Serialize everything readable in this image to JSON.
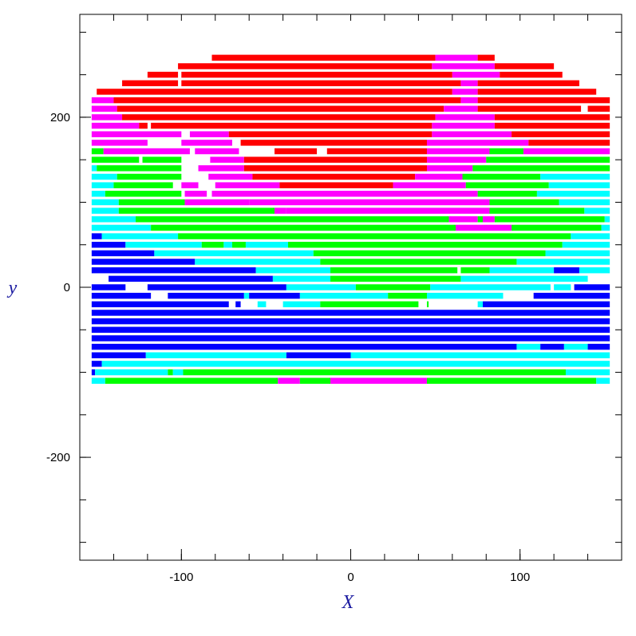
{
  "chart_data": {
    "type": "segments",
    "x_label": "X",
    "y_label": "y",
    "xlim": [
      -160,
      160
    ],
    "ylim": [
      -321,
      321
    ],
    "xticks": [
      -100,
      0,
      100
    ],
    "xminor": [
      -160,
      -140,
      -120,
      -100,
      -80,
      -60,
      -40,
      -20,
      0,
      20,
      40,
      60,
      80,
      100,
      120,
      140,
      160
    ],
    "yticks": [
      -200,
      0,
      200
    ],
    "yminor": [
      -300,
      -250,
      -200,
      -150,
      -100,
      -50,
      0,
      50,
      100,
      150,
      200,
      250,
      300
    ],
    "colors": [
      "#ff0000",
      "#ff00ff",
      "#00ff00",
      "#00ffff",
      "#0000ff"
    ],
    "rows": [
      {
        "y": 270,
        "segments": [
          [
            -82,
            50,
            0
          ],
          [
            50,
            75,
            1
          ],
          [
            75,
            85,
            0
          ]
        ]
      },
      {
        "y": 260,
        "segments": [
          [
            -102,
            48,
            0
          ],
          [
            48,
            85,
            1
          ],
          [
            85,
            120,
            0
          ]
        ]
      },
      {
        "y": 250,
        "segments": [
          [
            -120,
            -102,
            0
          ],
          [
            -100,
            60,
            0
          ],
          [
            60,
            88,
            1
          ],
          [
            88,
            125,
            0
          ]
        ]
      },
      {
        "y": 240,
        "segments": [
          [
            -135,
            -102,
            0
          ],
          [
            -100,
            65,
            0
          ],
          [
            65,
            75,
            1
          ],
          [
            75,
            135,
            0
          ]
        ]
      },
      {
        "y": 230,
        "segments": [
          [
            -150,
            60,
            0
          ],
          [
            60,
            75,
            1
          ],
          [
            75,
            145,
            0
          ]
        ]
      },
      {
        "y": 220,
        "segments": [
          [
            -153,
            -140,
            1
          ],
          [
            -140,
            65,
            0
          ],
          [
            65,
            75,
            1
          ],
          [
            75,
            153,
            0
          ]
        ]
      },
      {
        "y": 210,
        "segments": [
          [
            -153,
            -138,
            1
          ],
          [
            -138,
            55,
            0
          ],
          [
            55,
            75,
            1
          ],
          [
            75,
            136,
            0
          ],
          [
            140,
            153,
            0
          ]
        ]
      },
      {
        "y": 200,
        "segments": [
          [
            -153,
            -135,
            1
          ],
          [
            -135,
            50,
            0
          ],
          [
            50,
            85,
            1
          ],
          [
            85,
            153,
            0
          ]
        ]
      },
      {
        "y": 190,
        "segments": [
          [
            -153,
            -125,
            1
          ],
          [
            -125,
            -120,
            0
          ],
          [
            -118,
            48,
            0
          ],
          [
            48,
            85,
            1
          ],
          [
            85,
            153,
            0
          ]
        ]
      },
      {
        "y": 180,
        "segments": [
          [
            -153,
            -100,
            1
          ],
          [
            -95,
            -72,
            1
          ],
          [
            -72,
            48,
            0
          ],
          [
            48,
            95,
            1
          ],
          [
            95,
            153,
            0
          ]
        ]
      },
      {
        "y": 170,
        "segments": [
          [
            -153,
            -120,
            1
          ],
          [
            -100,
            -70,
            1
          ],
          [
            -65,
            45,
            0
          ],
          [
            45,
            105,
            1
          ],
          [
            105,
            153,
            0
          ]
        ]
      },
      {
        "y": 160,
        "segments": [
          [
            -153,
            -146,
            2
          ],
          [
            -146,
            -95,
            1
          ],
          [
            -92,
            -66,
            1
          ],
          [
            -45,
            -20,
            0
          ],
          [
            -14,
            45,
            0
          ],
          [
            45,
            82,
            1
          ],
          [
            82,
            102,
            2
          ],
          [
            102,
            153,
            1
          ]
        ]
      },
      {
        "y": 150,
        "segments": [
          [
            -153,
            -125,
            2
          ],
          [
            -123,
            -100,
            2
          ],
          [
            -83,
            -63,
            1
          ],
          [
            -63,
            45,
            0
          ],
          [
            45,
            80,
            1
          ],
          [
            80,
            153,
            2
          ]
        ]
      },
      {
        "y": 140,
        "segments": [
          [
            -153,
            -150,
            3
          ],
          [
            -150,
            -100,
            2
          ],
          [
            -90,
            -63,
            1
          ],
          [
            -63,
            45,
            0
          ],
          [
            45,
            72,
            1
          ],
          [
            72,
            153,
            2
          ]
        ]
      },
      {
        "y": 130,
        "segments": [
          [
            -153,
            -138,
            3
          ],
          [
            -138,
            -100,
            2
          ],
          [
            -84,
            -58,
            1
          ],
          [
            -58,
            38,
            0
          ],
          [
            38,
            66,
            1
          ],
          [
            66,
            112,
            2
          ],
          [
            112,
            153,
            3
          ]
        ]
      },
      {
        "y": 120,
        "segments": [
          [
            -153,
            -140,
            3
          ],
          [
            -140,
            -105,
            2
          ],
          [
            -100,
            -90,
            1
          ],
          [
            -80,
            -42,
            1
          ],
          [
            -42,
            25,
            0
          ],
          [
            25,
            68,
            1
          ],
          [
            68,
            117,
            2
          ],
          [
            117,
            153,
            3
          ]
        ]
      },
      {
        "y": 110,
        "segments": [
          [
            -153,
            -145,
            3
          ],
          [
            -145,
            -100,
            2
          ],
          [
            -98,
            -85,
            1
          ],
          [
            -82,
            75,
            1
          ],
          [
            75,
            110,
            2
          ],
          [
            110,
            153,
            3
          ]
        ]
      },
      {
        "y": 100,
        "segments": [
          [
            -153,
            -137,
            3
          ],
          [
            -137,
            -98,
            2
          ],
          [
            -98,
            -60,
            1
          ],
          [
            -60,
            82,
            1
          ],
          [
            82,
            123,
            2
          ],
          [
            123,
            153,
            3
          ]
        ]
      },
      {
        "y": 90,
        "segments": [
          [
            -153,
            -137,
            3
          ],
          [
            -137,
            -45,
            2
          ],
          [
            -45,
            -38,
            1
          ],
          [
            -38,
            82,
            1
          ],
          [
            82,
            138,
            2
          ],
          [
            138,
            153,
            3
          ]
        ]
      },
      {
        "y": 80,
        "segments": [
          [
            -153,
            -127,
            3
          ],
          [
            -127,
            58,
            2
          ],
          [
            58,
            75,
            1
          ],
          [
            75,
            78,
            2
          ],
          [
            78,
            85,
            1
          ],
          [
            85,
            150,
            2
          ],
          [
            150,
            153,
            3
          ]
        ]
      },
      {
        "y": 70,
        "segments": [
          [
            -153,
            -118,
            3
          ],
          [
            -118,
            62,
            2
          ],
          [
            62,
            95,
            1
          ],
          [
            95,
            148,
            2
          ],
          [
            148,
            153,
            3
          ]
        ]
      },
      {
        "y": 60,
        "segments": [
          [
            -153,
            -147,
            4
          ],
          [
            -147,
            -102,
            3
          ],
          [
            -102,
            130,
            2
          ],
          [
            130,
            153,
            3
          ]
        ]
      },
      {
        "y": 50,
        "segments": [
          [
            -153,
            -133,
            4
          ],
          [
            -133,
            -88,
            3
          ],
          [
            -88,
            -75,
            2
          ],
          [
            -75,
            -70,
            3
          ],
          [
            -70,
            -62,
            2
          ],
          [
            -62,
            -37,
            3
          ],
          [
            -37,
            125,
            2
          ],
          [
            125,
            153,
            3
          ]
        ]
      },
      {
        "y": 40,
        "segments": [
          [
            -153,
            -116,
            4
          ],
          [
            -116,
            -22,
            3
          ],
          [
            -22,
            115,
            2
          ],
          [
            115,
            153,
            3
          ]
        ]
      },
      {
        "y": 30,
        "segments": [
          [
            -153,
            -92,
            4
          ],
          [
            -92,
            -18,
            3
          ],
          [
            -18,
            98,
            2
          ],
          [
            98,
            153,
            3
          ]
        ]
      },
      {
        "y": 20,
        "segments": [
          [
            -153,
            -56,
            4
          ],
          [
            -56,
            -12,
            3
          ],
          [
            -12,
            63,
            2
          ],
          [
            65,
            82,
            2
          ],
          [
            82,
            120,
            3
          ],
          [
            120,
            135,
            4
          ],
          [
            135,
            153,
            3
          ]
        ]
      },
      {
        "y": 10,
        "segments": [
          [
            -143,
            -46,
            4
          ],
          [
            -46,
            -12,
            3
          ],
          [
            -12,
            65,
            2
          ],
          [
            65,
            140,
            3
          ]
        ]
      },
      {
        "y": 0,
        "segments": [
          [
            -153,
            -133,
            4
          ],
          [
            -120,
            -38,
            4
          ],
          [
            -38,
            3,
            3
          ],
          [
            3,
            47,
            2
          ],
          [
            47,
            118,
            3
          ],
          [
            120,
            130,
            3
          ],
          [
            132,
            153,
            4
          ]
        ]
      },
      {
        "y": -10,
        "segments": [
          [
            -153,
            -118,
            4
          ],
          [
            -108,
            -63,
            4
          ],
          [
            -63,
            -60,
            3
          ],
          [
            -60,
            -30,
            4
          ],
          [
            -30,
            22,
            3
          ],
          [
            22,
            45,
            2
          ],
          [
            45,
            90,
            3
          ],
          [
            108,
            153,
            4
          ]
        ]
      },
      {
        "y": -20,
        "segments": [
          [
            -153,
            -72,
            4
          ],
          [
            -68,
            -65,
            4
          ],
          [
            -55,
            -50,
            3
          ],
          [
            -40,
            -18,
            3
          ],
          [
            -18,
            40,
            2
          ],
          [
            45,
            46,
            2
          ],
          [
            75,
            78,
            3
          ],
          [
            78,
            153,
            4
          ]
        ]
      },
      {
        "y": -30,
        "segments": [
          [
            -153,
            153,
            4
          ]
        ]
      },
      {
        "y": -40,
        "segments": [
          [
            -153,
            153,
            4
          ]
        ]
      },
      {
        "y": -50,
        "segments": [
          [
            -153,
            153,
            4
          ]
        ]
      },
      {
        "y": -60,
        "segments": [
          [
            -153,
            153,
            4
          ]
        ]
      },
      {
        "y": -70,
        "segments": [
          [
            -153,
            98,
            4
          ],
          [
            98,
            112,
            3
          ],
          [
            112,
            126,
            4
          ],
          [
            126,
            140,
            3
          ],
          [
            140,
            153,
            4
          ]
        ]
      },
      {
        "y": -80,
        "segments": [
          [
            -153,
            -121,
            4
          ],
          [
            -121,
            -38,
            3
          ],
          [
            -38,
            0,
            4
          ],
          [
            0,
            153,
            3
          ]
        ]
      },
      {
        "y": -90,
        "segments": [
          [
            -153,
            -147,
            4
          ],
          [
            -147,
            153,
            3
          ]
        ]
      },
      {
        "y": -100,
        "segments": [
          [
            -153,
            -151,
            4
          ],
          [
            -151,
            -108,
            3
          ],
          [
            -108,
            -105,
            2
          ],
          [
            -105,
            -99,
            3
          ],
          [
            -99,
            127,
            2
          ],
          [
            127,
            153,
            3
          ]
        ]
      },
      {
        "y": -110,
        "segments": [
          [
            -153,
            -145,
            3
          ],
          [
            -145,
            -43,
            2
          ],
          [
            -43,
            -30,
            1
          ],
          [
            -30,
            -12,
            2
          ],
          [
            -12,
            45,
            1
          ],
          [
            45,
            145,
            2
          ],
          [
            145,
            153,
            3
          ]
        ]
      }
    ]
  }
}
